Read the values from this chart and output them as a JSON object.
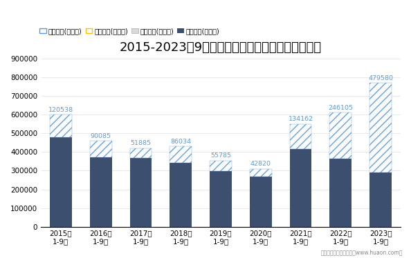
{
  "title": "2015-2023年9月河北省外商投资企业进出口差额图",
  "categories": [
    "2015年\n1-9月",
    "2016年\n1-9月",
    "2017年\n1-9月",
    "2018年\n1-9月",
    "2019年\n1-9月",
    "2020年\n1-9月",
    "2021年\n1-9月",
    "2022年\n1-9月",
    "2023年\n1-9月"
  ],
  "exports": [
    600000,
    460000,
    420000,
    430000,
    355000,
    310000,
    550000,
    610000,
    770000
  ],
  "imports": [
    479462,
    369915,
    368115,
    343966,
    299215,
    267180,
    415838,
    363895,
    290420
  ],
  "surplus_labels": [
    "120538",
    "90085",
    "51885",
    "86034",
    "55785",
    "42820",
    "134162",
    "246105",
    "479580"
  ],
  "surplus_color": "#5b9bd5",
  "deficit_color": "#ffc000",
  "export_color": "#d9d9d9",
  "import_color": "#3d4f6e",
  "legend_labels": [
    "贸易顺差(万美元)",
    "贸易逆差(万美元)",
    "出口总额(万美元)",
    "进口总额(万美元)"
  ],
  "ylim": [
    0,
    900000
  ],
  "yticks": [
    0,
    100000,
    200000,
    300000,
    400000,
    500000,
    600000,
    700000,
    800000,
    900000
  ],
  "footer": "制图：华经产业研究院（www.huaon.com）",
  "title_fontsize": 13,
  "background_color": "#ffffff"
}
